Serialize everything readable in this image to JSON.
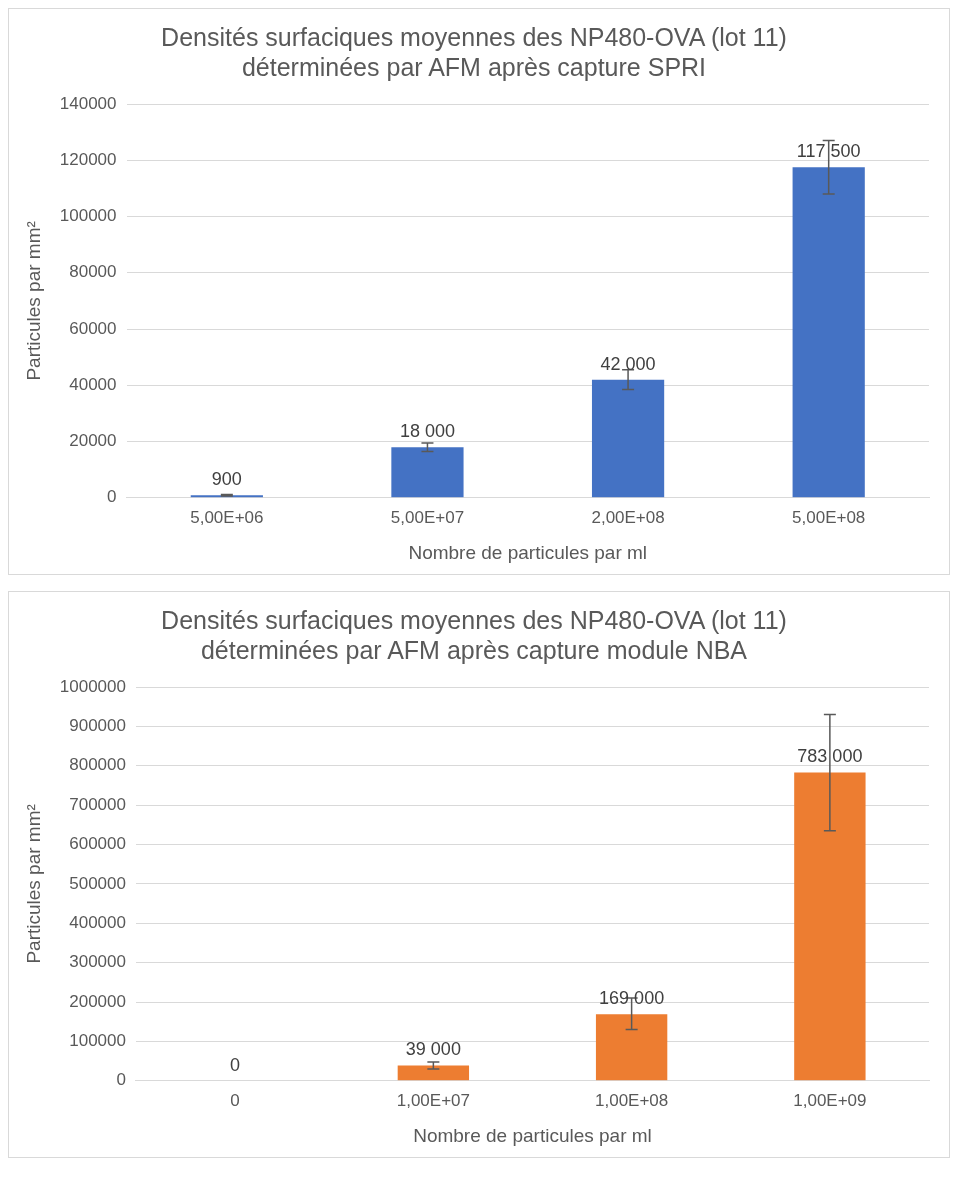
{
  "chart_data": [
    {
      "type": "bar",
      "title": "Densités surfaciques moyennes des NP480-OVA (lot 11)\ndéterminées par AFM après capture SPRI",
      "xlabel": "Nombre de particules par ml",
      "ylabel": "Particules par mm²",
      "categories": [
        "5,00E+06",
        "5,00E+07",
        "2,00E+08",
        "5,00E+08"
      ],
      "values": [
        900,
        18000,
        42000,
        117500
      ],
      "errors": [
        300,
        1500,
        3500,
        [
          108000,
          127000
        ]
      ],
      "value_labels": [
        "900",
        "18 000",
        "42 000",
        "117 500"
      ],
      "color": "#4472c4",
      "ylim": [
        0,
        140000
      ],
      "yticks": [
        0,
        20000,
        40000,
        60000,
        80000,
        100000,
        120000,
        140000
      ],
      "grid": "y",
      "legend": false
    },
    {
      "type": "bar",
      "title": "Densités surfaciques moyennes des NP480-OVA (lot 11)\ndéterminées par AFM après capture module NBA",
      "xlabel": "Nombre de particules par ml",
      "ylabel": "Particules par mm²",
      "categories": [
        "0",
        "1,00E+07",
        "1,00E+08",
        "1,00E+09"
      ],
      "values": [
        0,
        39000,
        169000,
        783000
      ],
      "errors": [
        null,
        [
          30000,
          48000
        ],
        [
          130000,
          210000
        ],
        [
          635000,
          930000
        ]
      ],
      "value_labels": [
        "0",
        "39 000",
        "169 000",
        "783 000"
      ],
      "color": "#ed7d31",
      "ylim": [
        0,
        1000000
      ],
      "yticks": [
        0,
        100000,
        200000,
        300000,
        400000,
        500000,
        600000,
        700000,
        800000,
        900000,
        1000000
      ],
      "grid": "y",
      "legend": false
    }
  ]
}
